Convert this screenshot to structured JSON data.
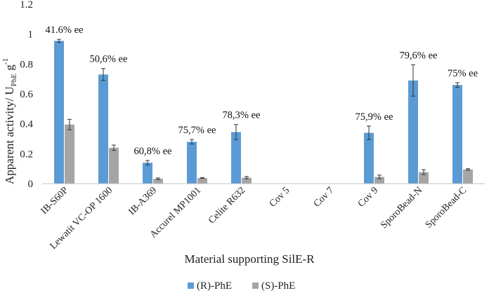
{
  "chart_data": {
    "type": "bar",
    "title": "",
    "xlabel": "Material supporting SilE-R",
    "ylabel": {
      "main": "Apparent activity/ U",
      "sub": "PhE",
      "rest": " g",
      "sup": "-1"
    },
    "ylim": [
      0,
      1.2
    ],
    "yticks": [
      "0",
      "0.2",
      "0.4",
      "0.6",
      "0.8",
      "1",
      "1.2"
    ],
    "grid": false,
    "legend_position": "bottom-center",
    "categories": [
      "IB-S60P",
      "Lewatit VC-OP 1600",
      "IB-A369",
      "Accurel MP1001",
      "Celite R632",
      "Cov 5",
      "Cov 7",
      "Cov 9",
      "SporoBead-N",
      "SporoBead-C"
    ],
    "series": [
      {
        "name": "(R)-PhE",
        "color": "#5b9bd5",
        "values": [
          0.955,
          0.73,
          0.14,
          0.28,
          0.345,
          0,
          0,
          0.34,
          0.69,
          0.66
        ],
        "errors": [
          0.01,
          0.04,
          0.015,
          0.015,
          0.05,
          0,
          0,
          0.045,
          0.105,
          0.015
        ]
      },
      {
        "name": "(S)-PhE",
        "color": "#a5a5a5",
        "values": [
          0.395,
          0.24,
          0.033,
          0.038,
          0.04,
          0,
          0,
          0.045,
          0.077,
          0.095
        ],
        "errors": [
          0.035,
          0.018,
          0.005,
          0.003,
          0.008,
          0,
          0,
          0.012,
          0.016,
          0.005
        ]
      }
    ],
    "annotations": [
      "41.6% ee",
      "50,6% ee",
      "60,8% ee",
      "75,7% ee",
      "78,3% ee",
      "",
      "",
      "75,9% ee",
      "79,6% ee",
      "75% ee"
    ]
  }
}
